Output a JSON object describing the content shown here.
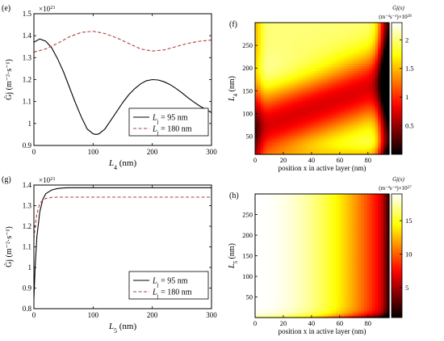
{
  "chart_data": [
    {
      "panel_label": "(e)",
      "type": "line",
      "xlabel_main": "L",
      "xlabel_sub": "4",
      "xlabel_unit": " (nm)",
      "ylabel": "Ġj (m⁻²·s⁻¹)",
      "exponent_base": "×10",
      "exponent_power": "21",
      "xlim": [
        0,
        300
      ],
      "ylim": [
        0.9,
        1.5
      ],
      "xticks": [
        0,
        100,
        200,
        300
      ],
      "yticks": [
        0.9,
        1,
        1.1,
        1.2,
        1.3,
        1.4,
        1.5
      ],
      "ytick_labels": [
        "0.9",
        "1",
        "1.1",
        "1.2",
        "1.3",
        "1.4",
        "1.5"
      ],
      "legend_position": "bottom-right",
      "series": [
        {
          "name": "Lj = 95 nm",
          "legend_main": "L",
          "legend_sub": "j",
          "legend_rest": " = 95 nm",
          "color": "#000000",
          "dash": "solid",
          "x": [
            0,
            10,
            20,
            30,
            40,
            50,
            60,
            70,
            80,
            90,
            100,
            105,
            110,
            120,
            130,
            140,
            150,
            160,
            170,
            180,
            190,
            200,
            210,
            220,
            230,
            240,
            250,
            260,
            270,
            280,
            290,
            300
          ],
          "y": [
            1.37,
            1.385,
            1.375,
            1.345,
            1.295,
            1.235,
            1.165,
            1.095,
            1.03,
            0.975,
            0.953,
            0.95,
            0.953,
            0.975,
            1.015,
            1.055,
            1.095,
            1.13,
            1.158,
            1.18,
            1.195,
            1.2,
            1.198,
            1.19,
            1.177,
            1.16,
            1.14,
            1.118,
            1.098,
            1.08,
            1.065,
            1.05
          ]
        },
        {
          "name": "Lj = 180 nm",
          "legend_main": "L",
          "legend_sub": "j",
          "legend_rest": " = 180 nm",
          "color": "#b04040",
          "dash": "dashed",
          "x": [
            0,
            20,
            40,
            60,
            80,
            100,
            120,
            140,
            160,
            180,
            200,
            220,
            240,
            260,
            280,
            300
          ],
          "y": [
            1.325,
            1.34,
            1.365,
            1.395,
            1.415,
            1.42,
            1.41,
            1.39,
            1.365,
            1.34,
            1.33,
            1.335,
            1.35,
            1.365,
            1.375,
            1.38
          ]
        }
      ]
    },
    {
      "panel_label": "(f)",
      "type": "heatmap",
      "xlabel": "position x in active layer (nm)",
      "ylabel_main": "L",
      "ylabel_sub": "4",
      "ylabel_unit": " (nm)",
      "xlim": [
        0,
        95
      ],
      "ylim": [
        10,
        300
      ],
      "xticks": [
        0,
        20,
        40,
        60,
        80
      ],
      "yticks": [
        50,
        100,
        150,
        200,
        250
      ],
      "colorbar_title": "Ġj(x)",
      "colorbar_units": "(m⁻³s⁻¹)×10",
      "colorbar_power": "28",
      "colorbar_ticks": [
        0.5,
        1,
        1.5,
        2
      ],
      "colorbar_tick_labels": [
        "0.5",
        "1",
        "1.5",
        "2"
      ],
      "clim": [
        0,
        2.3
      ],
      "colormap": "hot"
    },
    {
      "panel_label": "(g)",
      "type": "line",
      "xlabel_main": "L",
      "xlabel_sub": "5",
      "xlabel_unit": " (nm)",
      "ylabel": "Ġj (m⁻²·s⁻¹)",
      "exponent_base": "×10",
      "exponent_power": "21",
      "xlim": [
        0,
        300
      ],
      "ylim": [
        0.8,
        1.4
      ],
      "xticks": [
        0,
        100,
        200,
        300
      ],
      "yticks": [
        0.8,
        0.9,
        1,
        1.1,
        1.2,
        1.3,
        1.4
      ],
      "ytick_labels": [
        "0.8",
        "0.9",
        "1",
        "1.1",
        "1.2",
        "1.3",
        "1.4"
      ],
      "legend_position": "bottom-right",
      "series": [
        {
          "name": "Lj = 95 nm",
          "legend_main": "L",
          "legend_sub": "j",
          "legend_rest": " = 95 nm",
          "color": "#000000",
          "dash": "solid",
          "x": [
            0,
            2,
            5,
            10,
            15,
            20,
            30,
            40,
            50,
            60,
            80,
            100,
            150,
            200,
            250,
            300
          ],
          "y": [
            0.85,
            1.0,
            1.15,
            1.27,
            1.33,
            1.358,
            1.376,
            1.383,
            1.386,
            1.387,
            1.387,
            1.387,
            1.387,
            1.387,
            1.387,
            1.387
          ]
        },
        {
          "name": "Lj = 180 nm",
          "legend_main": "L",
          "legend_sub": "j",
          "legend_rest": " = 180 nm",
          "color": "#b04040",
          "dash": "dashed",
          "x": [
            0,
            2,
            5,
            10,
            15,
            20,
            30,
            40,
            50,
            60,
            80,
            100,
            150,
            200,
            250,
            300
          ],
          "y": [
            1.14,
            1.2,
            1.26,
            1.31,
            1.327,
            1.335,
            1.34,
            1.341,
            1.341,
            1.341,
            1.341,
            1.341,
            1.341,
            1.341,
            1.341,
            1.341
          ]
        }
      ]
    },
    {
      "panel_label": "(h)",
      "type": "heatmap",
      "xlabel": "position x in active layer (nm)",
      "ylabel_main": "L",
      "ylabel_sub": "5",
      "ylabel_unit": " (nm)",
      "xlim": [
        0,
        95
      ],
      "ylim": [
        0,
        300
      ],
      "xticks": [
        0,
        20,
        40,
        60,
        80
      ],
      "yticks": [
        50,
        100,
        150,
        200,
        250
      ],
      "colorbar_title": "Ġj(x)",
      "colorbar_units": "(m⁻³s⁻¹)×10",
      "colorbar_power": "27",
      "colorbar_ticks": [
        5,
        10,
        15
      ],
      "colorbar_tick_labels": [
        "5",
        "10",
        "15"
      ],
      "clim": [
        0.5,
        19
      ],
      "colormap": "hot"
    }
  ]
}
